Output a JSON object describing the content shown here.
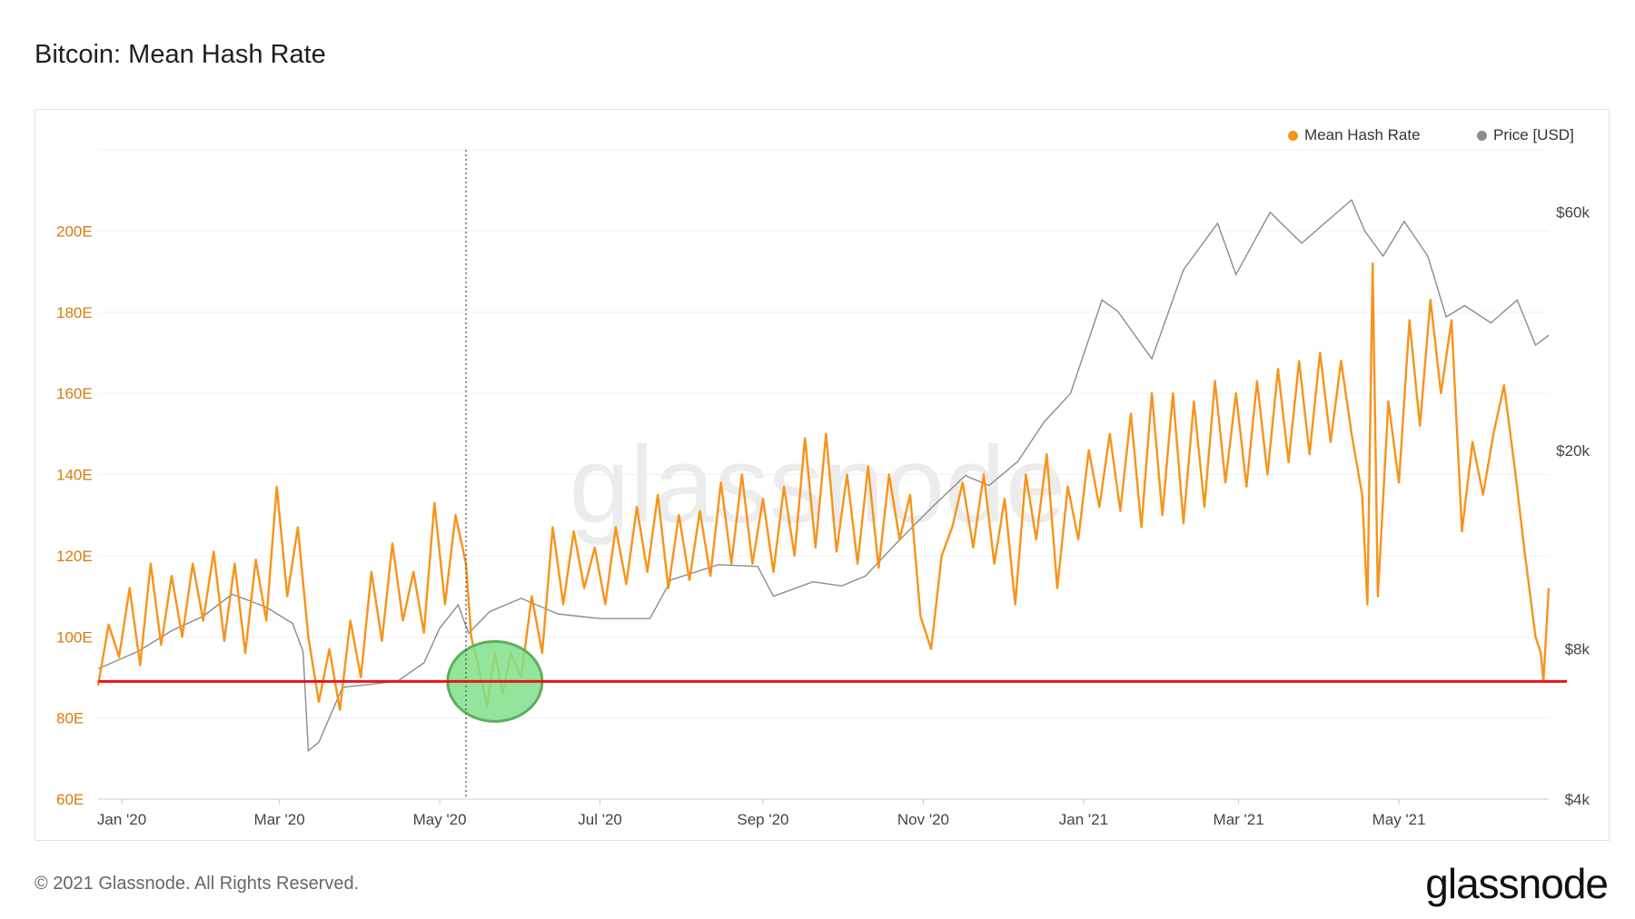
{
  "header": {
    "title": "Bitcoin: Mean Hash Rate"
  },
  "footer": {
    "copyright": "© 2021 Glassnode. All Rights Reserved.",
    "brand": "glassnode"
  },
  "watermark": "glassnode",
  "colors": {
    "hash_rate": "#f7931a",
    "price": "#8c8c8c",
    "threshold": "#e8151b",
    "highlight": "#7fe08a",
    "highlight_border": "#5fae5f"
  },
  "chart_data": {
    "type": "line",
    "title": "Bitcoin: Mean Hash Rate",
    "legend": {
      "placement": "top-right",
      "items": [
        "Mean Hash Rate",
        "Price [USD]"
      ]
    },
    "x_ticks": [
      "Jan '20",
      "Mar '20",
      "May '20",
      "Jul '20",
      "Sep '20",
      "Nov '20",
      "Jan '21",
      "Mar '21",
      "May '21"
    ],
    "x_range": [
      "2019-12-23",
      "2021-06-27"
    ],
    "y_left": {
      "label": "",
      "ticks": [
        "60E",
        "80E",
        "100E",
        "120E",
        "140E",
        "160E",
        "180E",
        "200E"
      ],
      "range": [
        60,
        220
      ],
      "unit": "EH/s"
    },
    "y_right": {
      "label": "",
      "ticks": [
        "$4k",
        "$8k",
        "$20k",
        "$60k"
      ],
      "scale": "log",
      "range": [
        4000,
        80000
      ]
    },
    "grid": true,
    "reference_line": {
      "axis": "y_left",
      "value": 89
    },
    "highlight_circle": {
      "date": "2020-05-22",
      "value": 89
    },
    "vertical_marker": {
      "date": "2020-05-11"
    },
    "series": [
      {
        "name": "Mean Hash Rate",
        "axis": "y_left",
        "points": [
          [
            "2019-12-23",
            88
          ],
          [
            "2019-12-27",
            103
          ],
          [
            "2019-12-31",
            95
          ],
          [
            "2020-01-04",
            112
          ],
          [
            "2020-01-08",
            93
          ],
          [
            "2020-01-12",
            118
          ],
          [
            "2020-01-16",
            98
          ],
          [
            "2020-01-20",
            115
          ],
          [
            "2020-01-24",
            100
          ],
          [
            "2020-01-28",
            118
          ],
          [
            "2020-02-01",
            104
          ],
          [
            "2020-02-05",
            121
          ],
          [
            "2020-02-09",
            99
          ],
          [
            "2020-02-13",
            118
          ],
          [
            "2020-02-17",
            96
          ],
          [
            "2020-02-21",
            119
          ],
          [
            "2020-02-25",
            104
          ],
          [
            "2020-02-29",
            137
          ],
          [
            "2020-03-04",
            110
          ],
          [
            "2020-03-08",
            127
          ],
          [
            "2020-03-12",
            100
          ],
          [
            "2020-03-16",
            84
          ],
          [
            "2020-03-20",
            97
          ],
          [
            "2020-03-24",
            82
          ],
          [
            "2020-03-28",
            104
          ],
          [
            "2020-04-01",
            90
          ],
          [
            "2020-04-05",
            116
          ],
          [
            "2020-04-09",
            99
          ],
          [
            "2020-04-13",
            123
          ],
          [
            "2020-04-17",
            104
          ],
          [
            "2020-04-21",
            116
          ],
          [
            "2020-04-25",
            101
          ],
          [
            "2020-04-29",
            133
          ],
          [
            "2020-05-03",
            108
          ],
          [
            "2020-05-07",
            130
          ],
          [
            "2020-05-11",
            118
          ],
          [
            "2020-05-13",
            100
          ],
          [
            "2020-05-16",
            92
          ],
          [
            "2020-05-19",
            83
          ],
          [
            "2020-05-22",
            96
          ],
          [
            "2020-05-25",
            86
          ],
          [
            "2020-05-28",
            96
          ],
          [
            "2020-06-01",
            90
          ],
          [
            "2020-06-05",
            110
          ],
          [
            "2020-06-09",
            96
          ],
          [
            "2020-06-13",
            127
          ],
          [
            "2020-06-17",
            108
          ],
          [
            "2020-06-21",
            126
          ],
          [
            "2020-06-25",
            112
          ],
          [
            "2020-06-29",
            122
          ],
          [
            "2020-07-03",
            108
          ],
          [
            "2020-07-07",
            127
          ],
          [
            "2020-07-11",
            113
          ],
          [
            "2020-07-15",
            132
          ],
          [
            "2020-07-19",
            116
          ],
          [
            "2020-07-23",
            135
          ],
          [
            "2020-07-27",
            112
          ],
          [
            "2020-07-31",
            130
          ],
          [
            "2020-08-04",
            114
          ],
          [
            "2020-08-08",
            131
          ],
          [
            "2020-08-12",
            115
          ],
          [
            "2020-08-16",
            138
          ],
          [
            "2020-08-20",
            118
          ],
          [
            "2020-08-24",
            140
          ],
          [
            "2020-08-28",
            118
          ],
          [
            "2020-09-01",
            134
          ],
          [
            "2020-09-05",
            116
          ],
          [
            "2020-09-09",
            137
          ],
          [
            "2020-09-13",
            120
          ],
          [
            "2020-09-17",
            149
          ],
          [
            "2020-09-21",
            122
          ],
          [
            "2020-09-25",
            150
          ],
          [
            "2020-09-29",
            121
          ],
          [
            "2020-10-03",
            140
          ],
          [
            "2020-10-07",
            118
          ],
          [
            "2020-10-11",
            142
          ],
          [
            "2020-10-15",
            117
          ],
          [
            "2020-10-19",
            140
          ],
          [
            "2020-10-23",
            124
          ],
          [
            "2020-10-27",
            135
          ],
          [
            "2020-10-31",
            105
          ],
          [
            "2020-11-04",
            97
          ],
          [
            "2020-11-08",
            120
          ],
          [
            "2020-11-12",
            127
          ],
          [
            "2020-11-16",
            138
          ],
          [
            "2020-11-20",
            122
          ],
          [
            "2020-11-24",
            140
          ],
          [
            "2020-11-28",
            118
          ],
          [
            "2020-12-02",
            134
          ],
          [
            "2020-12-06",
            108
          ],
          [
            "2020-12-10",
            140
          ],
          [
            "2020-12-14",
            124
          ],
          [
            "2020-12-18",
            145
          ],
          [
            "2020-12-22",
            112
          ],
          [
            "2020-12-26",
            137
          ],
          [
            "2020-12-30",
            124
          ],
          [
            "2021-01-03",
            146
          ],
          [
            "2021-01-07",
            132
          ],
          [
            "2021-01-11",
            150
          ],
          [
            "2021-01-15",
            131
          ],
          [
            "2021-01-19",
            155
          ],
          [
            "2021-01-23",
            127
          ],
          [
            "2021-01-27",
            160
          ],
          [
            "2021-01-31",
            130
          ],
          [
            "2021-02-04",
            160
          ],
          [
            "2021-02-08",
            128
          ],
          [
            "2021-02-12",
            158
          ],
          [
            "2021-02-16",
            132
          ],
          [
            "2021-02-20",
            163
          ],
          [
            "2021-02-24",
            138
          ],
          [
            "2021-02-28",
            160
          ],
          [
            "2021-03-04",
            137
          ],
          [
            "2021-03-08",
            163
          ],
          [
            "2021-03-12",
            140
          ],
          [
            "2021-03-16",
            166
          ],
          [
            "2021-03-20",
            143
          ],
          [
            "2021-03-24",
            168
          ],
          [
            "2021-03-28",
            145
          ],
          [
            "2021-04-01",
            170
          ],
          [
            "2021-04-05",
            148
          ],
          [
            "2021-04-09",
            168
          ],
          [
            "2021-04-13",
            150
          ],
          [
            "2021-04-17",
            135
          ],
          [
            "2021-04-19",
            108
          ],
          [
            "2021-04-21",
            192
          ],
          [
            "2021-04-23",
            110
          ],
          [
            "2021-04-27",
            158
          ],
          [
            "2021-05-01",
            138
          ],
          [
            "2021-05-05",
            178
          ],
          [
            "2021-05-09",
            152
          ],
          [
            "2021-05-13",
            183
          ],
          [
            "2021-05-17",
            160
          ],
          [
            "2021-05-21",
            178
          ],
          [
            "2021-05-25",
            126
          ],
          [
            "2021-05-29",
            148
          ],
          [
            "2021-06-02",
            135
          ],
          [
            "2021-06-06",
            150
          ],
          [
            "2021-06-10",
            162
          ],
          [
            "2021-06-14",
            142
          ],
          [
            "2021-06-18",
            120
          ],
          [
            "2021-06-22",
            100
          ],
          [
            "2021-06-24",
            96
          ],
          [
            "2021-06-25",
            89
          ],
          [
            "2021-06-27",
            112
          ]
        ]
      },
      {
        "name": "Price [USD]",
        "axis": "y_right",
        "points": [
          [
            "2019-12-23",
            7300
          ],
          [
            "2020-01-07",
            7900
          ],
          [
            "2020-01-20",
            8700
          ],
          [
            "2020-02-01",
            9300
          ],
          [
            "2020-02-12",
            10300
          ],
          [
            "2020-02-25",
            9700
          ],
          [
            "2020-03-06",
            9000
          ],
          [
            "2020-03-10",
            7900
          ],
          [
            "2020-03-12",
            5000
          ],
          [
            "2020-03-16",
            5200
          ],
          [
            "2020-03-25",
            6700
          ],
          [
            "2020-04-05",
            6800
          ],
          [
            "2020-04-15",
            6900
          ],
          [
            "2020-04-25",
            7500
          ],
          [
            "2020-05-01",
            8800
          ],
          [
            "2020-05-08",
            9800
          ],
          [
            "2020-05-12",
            8600
          ],
          [
            "2020-05-20",
            9500
          ],
          [
            "2020-06-01",
            10100
          ],
          [
            "2020-06-15",
            9400
          ],
          [
            "2020-07-01",
            9200
          ],
          [
            "2020-07-20",
            9200
          ],
          [
            "2020-07-28",
            11000
          ],
          [
            "2020-08-15",
            11800
          ],
          [
            "2020-08-30",
            11700
          ],
          [
            "2020-09-05",
            10200
          ],
          [
            "2020-09-20",
            10900
          ],
          [
            "2020-10-01",
            10700
          ],
          [
            "2020-10-10",
            11200
          ],
          [
            "2020-10-21",
            12900
          ],
          [
            "2020-11-05",
            15500
          ],
          [
            "2020-11-17",
            17800
          ],
          [
            "2020-11-26",
            17000
          ],
          [
            "2020-12-07",
            19000
          ],
          [
            "2020-12-17",
            22800
          ],
          [
            "2020-12-27",
            26000
          ],
          [
            "2021-01-08",
            40000
          ],
          [
            "2021-01-14",
            38000
          ],
          [
            "2021-01-27",
            30500
          ],
          [
            "2021-02-08",
            46000
          ],
          [
            "2021-02-21",
            57000
          ],
          [
            "2021-02-28",
            45000
          ],
          [
            "2021-03-13",
            60000
          ],
          [
            "2021-03-25",
            52000
          ],
          [
            "2021-04-13",
            63500
          ],
          [
            "2021-04-18",
            55000
          ],
          [
            "2021-04-25",
            49000
          ],
          [
            "2021-05-03",
            57500
          ],
          [
            "2021-05-12",
            49000
          ],
          [
            "2021-05-19",
            37000
          ],
          [
            "2021-05-26",
            39000
          ],
          [
            "2021-06-05",
            36000
          ],
          [
            "2021-06-15",
            40000
          ],
          [
            "2021-06-22",
            32500
          ],
          [
            "2021-06-27",
            34000
          ]
        ]
      }
    ]
  }
}
